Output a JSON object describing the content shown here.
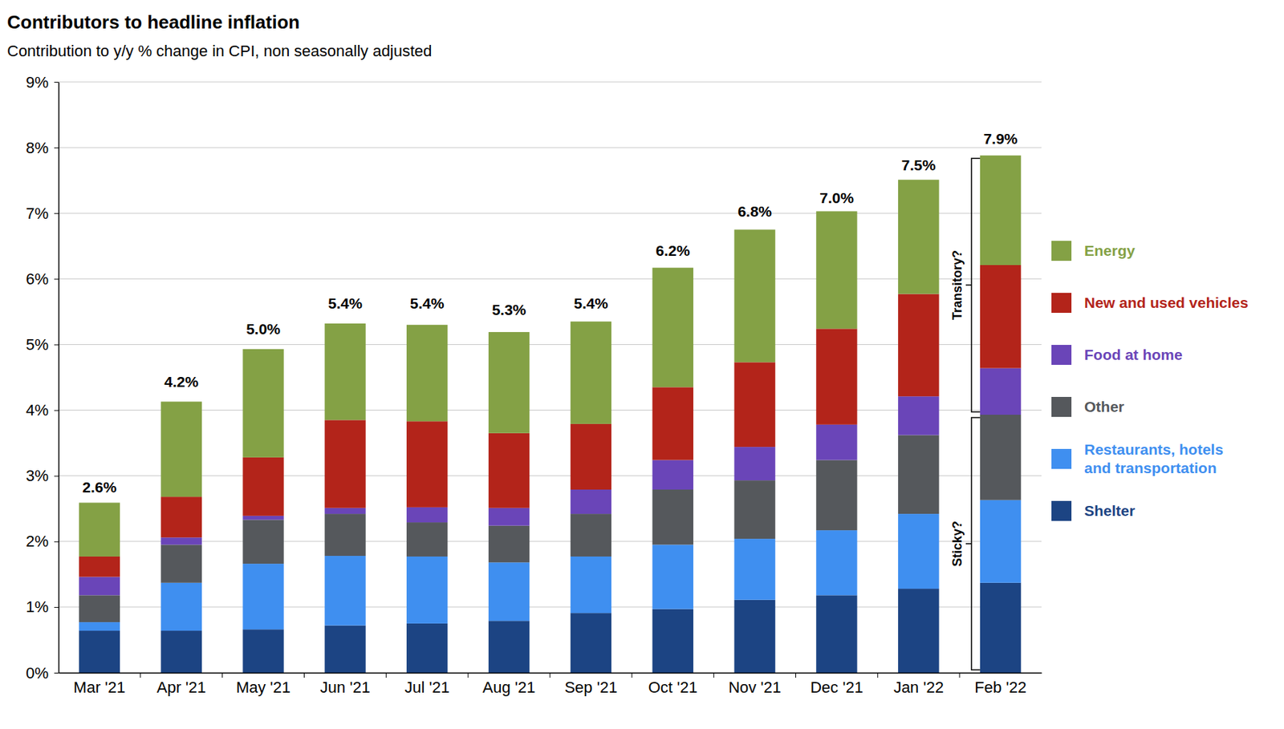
{
  "chart_data": {
    "type": "bar",
    "title": "Contributors to headline inflation",
    "subtitle": "Contribution to y/y % change in CPI, non seasonally adjusted",
    "categories": [
      "Mar '21",
      "Apr '21",
      "May '21",
      "Jun '21",
      "Jul '21",
      "Aug '21",
      "Sep '21",
      "Oct '21",
      "Nov '21",
      "Dec '21",
      "Jan '22",
      "Feb '22"
    ],
    "series": [
      {
        "name": "Shelter",
        "color": "#1c4483",
        "values": [
          0.64,
          0.64,
          0.66,
          0.72,
          0.75,
          0.79,
          0.91,
          0.97,
          1.11,
          1.18,
          1.28,
          1.37
        ]
      },
      {
        "name": "Restaurants, hotels and transportation",
        "color": "#3f8ff0",
        "values": [
          0.13,
          0.73,
          1.0,
          1.06,
          1.02,
          0.89,
          0.86,
          0.98,
          0.93,
          0.99,
          1.14,
          1.26
        ]
      },
      {
        "name": "Other",
        "color": "#55585c",
        "values": [
          0.41,
          0.58,
          0.67,
          0.64,
          0.52,
          0.56,
          0.65,
          0.84,
          0.89,
          1.07,
          1.2,
          1.3
        ]
      },
      {
        "name": "Food  at home",
        "color": "#6a45b8",
        "values": [
          0.28,
          0.11,
          0.06,
          0.09,
          0.23,
          0.27,
          0.37,
          0.45,
          0.51,
          0.54,
          0.59,
          0.71
        ]
      },
      {
        "name": "New and used vehicles",
        "color": "#b3241a",
        "values": [
          0.31,
          0.62,
          0.89,
          1.34,
          1.31,
          1.14,
          1.0,
          1.11,
          1.29,
          1.46,
          1.56,
          1.57
        ]
      },
      {
        "name": "Energy",
        "color": "#84a145",
        "values": [
          0.82,
          1.45,
          1.65,
          1.47,
          1.47,
          1.54,
          1.56,
          1.82,
          2.02,
          1.79,
          1.74,
          1.67
        ]
      }
    ],
    "totals": [
      2.6,
      4.2,
      5.0,
      5.4,
      5.4,
      5.3,
      5.4,
      6.2,
      6.8,
      7.0,
      7.5,
      7.9
    ],
    "total_labels": [
      "2.6%",
      "4.2%",
      "5.0%",
      "5.4%",
      "5.4%",
      "5.3%",
      "5.4%",
      "6.2%",
      "6.8%",
      "7.0%",
      "7.5%",
      "7.9%"
    ],
    "annotations": [
      {
        "label": "Transitory?",
        "from": 3.93,
        "to": 7.88
      },
      {
        "label": "Sticky?",
        "from": 0,
        "to": 3.93
      }
    ],
    "ylim": [
      0,
      9
    ],
    "yticks": [
      {
        "value": 0,
        "label": "0%"
      },
      {
        "value": 1,
        "label": "1%"
      },
      {
        "value": 2,
        "label": "2%"
      },
      {
        "value": 3,
        "label": "3%"
      },
      {
        "value": 4,
        "label": "4%"
      },
      {
        "value": 5,
        "label": "5%"
      },
      {
        "value": 6,
        "label": "6%"
      },
      {
        "value": 7,
        "label": "7%"
      },
      {
        "value": 8,
        "label": "8%"
      },
      {
        "value": 9,
        "label": "9%"
      }
    ],
    "stacked": true,
    "grid": true,
    "legend": "right"
  }
}
